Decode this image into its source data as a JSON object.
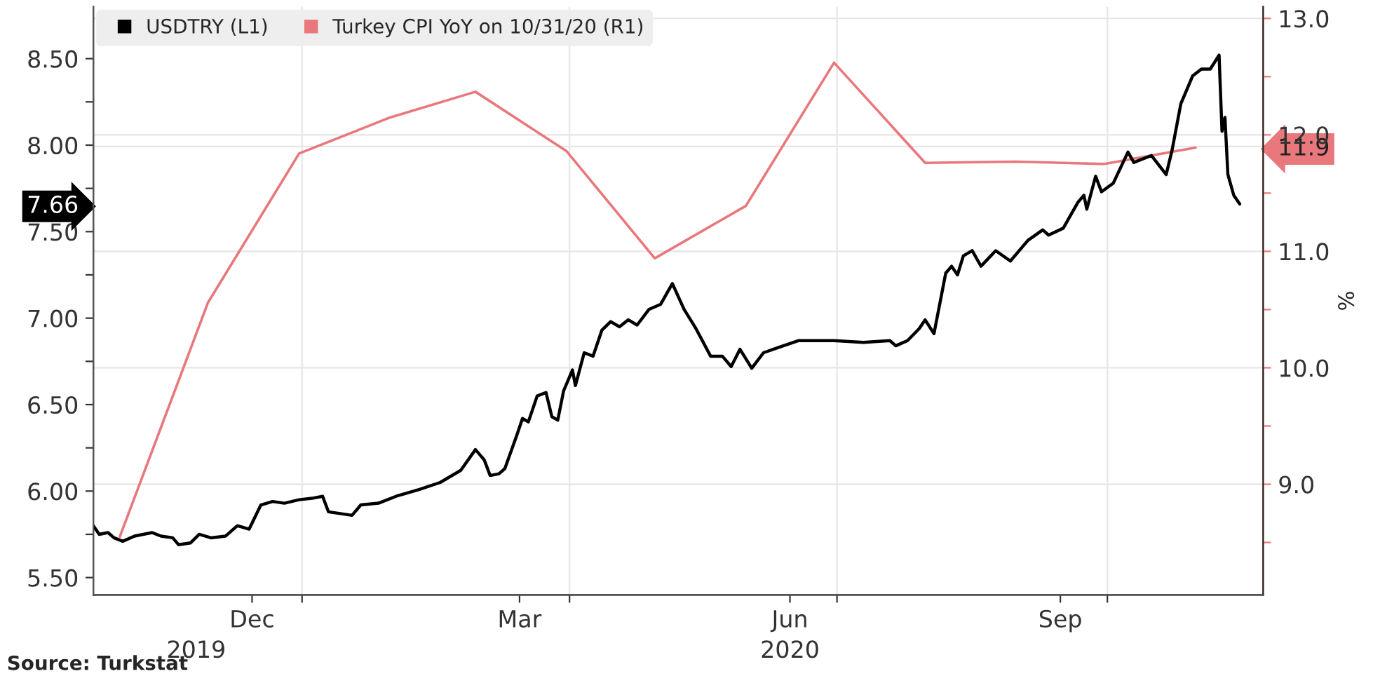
{
  "chart_data": {
    "type": "line",
    "xlim": [
      "2019-10-22",
      "2020-11-23"
    ],
    "xticks": [
      {
        "value": "2019-12-15",
        "label": "Dec"
      },
      {
        "value": "2020-01-01",
        "label": null
      },
      {
        "value": "2020-03-15",
        "label": "Mar"
      },
      {
        "value": "2020-04-01",
        "label": null
      },
      {
        "value": "2020-06-15",
        "label": "Jun"
      },
      {
        "value": "2020-07-01",
        "label": null
      },
      {
        "value": "2020-09-15",
        "label": "Sep"
      },
      {
        "value": "2020-10-01",
        "label": null
      }
    ],
    "ylim": [
      5.4,
      8.8
    ],
    "yticks": [
      {
        "value": 5.5,
        "label": "5.50"
      },
      {
        "value": 5.75,
        "label": null
      },
      {
        "value": 6.0,
        "label": "6.00"
      },
      {
        "value": 6.25,
        "label": null
      },
      {
        "value": 6.5,
        "label": "6.50"
      },
      {
        "value": 6.75,
        "label": null
      },
      {
        "value": 7.0,
        "label": "7.00"
      },
      {
        "value": 7.25,
        "label": null
      },
      {
        "value": 7.5,
        "label": "7.50"
      },
      {
        "value": 7.66,
        "label": "7.66"
      },
      {
        "value": 7.75,
        "label": null
      },
      {
        "value": 8.0,
        "label": "8.00"
      },
      {
        "value": 8.25,
        "label": null
      },
      {
        "value": 8.5,
        "label": "8.50"
      }
    ],
    "y2lim": [
      8.05,
      13.1
    ],
    "y2ticks": [
      {
        "value": 8.5,
        "label": null
      },
      {
        "value": 9,
        "label": "9.0"
      },
      {
        "value": 9.5,
        "label": null
      },
      {
        "value": 10,
        "label": "10.0"
      },
      {
        "value": 10.5,
        "label": null
      },
      {
        "value": 11,
        "label": "11.0"
      },
      {
        "value": 11.5,
        "label": null
      },
      {
        "value": 11.9,
        "label": "11.9"
      },
      {
        "value": 12,
        "label": "12.0"
      },
      {
        "value": 12.5,
        "label": null
      },
      {
        "value": 13,
        "label": "13.0"
      }
    ],
    "y2label": "%",
    "x2lim": [
      "2019-10-22",
      "2020-11-23"
    ],
    "x2ticks": [
      {
        "value": "2019-11-26",
        "label": "2019"
      },
      {
        "value": "2020-06-15",
        "label": "2020"
      }
    ],
    "grid": true,
    "legend": "top left",
    "series": [
      {
        "name": "USDTRY (L1)",
        "color": "#000000",
        "x": [
          "2019-10-22",
          "2019-10-24",
          "2019-10-27",
          "2019-10-29",
          "2019-11-01",
          "2019-11-05",
          "2019-11-11",
          "2019-11-14",
          "2019-11-18",
          "2019-11-20",
          "2019-11-24",
          "2019-11-27",
          "2019-12-01",
          "2019-12-06",
          "2019-12-10",
          "2019-12-14",
          "2019-12-18",
          "2019-12-22",
          "2019-12-26",
          "2019-12-31",
          "2020-01-05",
          "2020-01-08",
          "2020-01-10",
          "2020-01-14",
          "2020-01-18",
          "2020-01-21",
          "2020-01-27",
          "2020-02-02",
          "2020-02-10",
          "2020-02-17",
          "2020-02-24",
          "2020-02-29",
          "2020-03-03",
          "2020-03-05",
          "2020-03-08",
          "2020-03-10",
          "2020-03-14",
          "2020-03-16",
          "2020-03-18",
          "2020-03-21",
          "2020-03-24",
          "2020-03-26",
          "2020-03-28",
          "2020-03-30",
          "2020-04-02",
          "2020-04-03",
          "2020-04-06",
          "2020-04-09",
          "2020-04-12",
          "2020-04-15",
          "2020-04-18",
          "2020-04-21",
          "2020-04-24",
          "2020-04-28",
          "2020-05-02",
          "2020-05-06",
          "2020-05-10",
          "2020-05-14",
          "2020-05-19",
          "2020-05-23",
          "2020-05-26",
          "2020-05-29",
          "2020-06-02",
          "2020-06-06",
          "2020-06-11",
          "2020-06-18",
          "2020-06-30",
          "2020-07-10",
          "2020-07-19",
          "2020-07-21",
          "2020-07-25",
          "2020-07-29",
          "2020-07-31",
          "2020-08-03",
          "2020-08-07",
          "2020-08-09",
          "2020-08-11",
          "2020-08-13",
          "2020-08-16",
          "2020-08-19",
          "2020-08-24",
          "2020-08-29",
          "2020-09-04",
          "2020-09-09",
          "2020-09-11",
          "2020-09-16",
          "2020-09-21",
          "2020-09-23",
          "2020-09-24",
          "2020-09-27",
          "2020-09-29",
          "2020-10-03",
          "2020-10-08",
          "2020-10-10",
          "2020-10-16",
          "2020-10-21",
          "2020-10-23",
          "2020-10-26",
          "2020-10-30",
          "2020-11-02",
          "2020-11-05",
          "2020-11-08",
          "2020-11-09",
          "2020-11-10",
          "2020-11-11",
          "2020-11-13",
          "2020-11-15"
        ],
        "values": [
          5.8,
          5.75,
          5.76,
          5.73,
          5.71,
          5.74,
          5.76,
          5.74,
          5.73,
          5.69,
          5.7,
          5.75,
          5.73,
          5.74,
          5.8,
          5.78,
          5.92,
          5.94,
          5.93,
          5.95,
          5.96,
          5.97,
          5.88,
          5.87,
          5.86,
          5.92,
          5.93,
          5.97,
          6.01,
          6.05,
          6.12,
          6.24,
          6.18,
          6.09,
          6.1,
          6.13,
          6.32,
          6.42,
          6.4,
          6.55,
          6.57,
          6.43,
          6.41,
          6.58,
          6.7,
          6.61,
          6.8,
          6.78,
          6.93,
          6.98,
          6.95,
          6.99,
          6.96,
          7.05,
          7.08,
          7.2,
          7.05,
          6.94,
          6.78,
          6.78,
          6.72,
          6.82,
          6.71,
          6.8,
          6.83,
          6.87,
          6.87,
          6.86,
          6.87,
          6.84,
          6.87,
          6.94,
          6.99,
          6.91,
          7.26,
          7.3,
          7.25,
          7.36,
          7.39,
          7.3,
          7.39,
          7.33,
          7.45,
          7.51,
          7.48,
          7.52,
          7.67,
          7.71,
          7.63,
          7.82,
          7.73,
          7.78,
          7.96,
          7.9,
          7.94,
          7.83,
          7.97,
          8.24,
          8.4,
          8.44,
          8.44,
          8.52,
          8.08,
          8.16,
          7.83,
          7.71,
          7.66
        ]
      },
      {
        "name": "Turkey CPI YoY on 10/31/20 (R1)",
        "color": "#e8787c",
        "axis": "y2",
        "x": [
          "2019-10-31",
          "2019-11-30",
          "2019-12-31",
          "2020-01-31",
          "2020-02-29",
          "2020-03-31",
          "2020-04-30",
          "2020-05-31",
          "2020-06-30",
          "2020-07-31",
          "2020-08-31",
          "2020-09-30",
          "2020-10-31"
        ],
        "values": [
          8.55,
          10.56,
          11.84,
          12.15,
          12.37,
          11.86,
          10.94,
          11.39,
          12.62,
          11.76,
          11.77,
          11.75,
          11.89
        ]
      }
    ],
    "annotations": [
      "Source: Turkstat"
    ]
  }
}
